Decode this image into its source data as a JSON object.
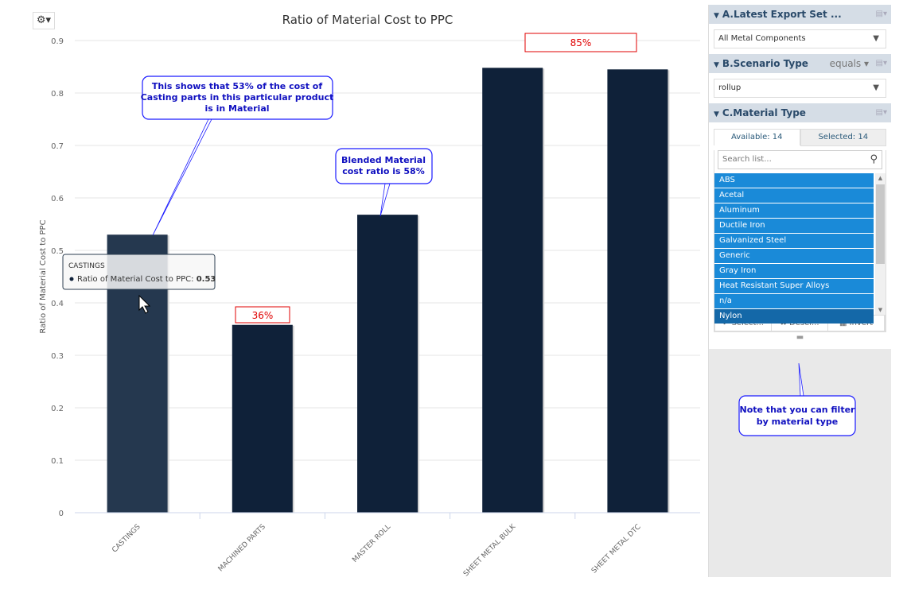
{
  "toolbar": {
    "settings_icon": "gear-icon"
  },
  "chart_data": {
    "type": "bar",
    "title": "Ratio of Material Cost to PPC",
    "ylabel": "Ratio of Material Cost to PPC",
    "xlabel": "",
    "categories": [
      "CASTINGS",
      "MACHINED PARTS",
      "MASTER ROLL",
      "SHEET METAL BULK",
      "SHEET METAL DTC"
    ],
    "values": [
      0.53,
      0.358,
      0.568,
      0.848,
      0.845
    ],
    "ylim": [
      0,
      0.9
    ],
    "yticks": [
      "0",
      "0.1",
      "0.2",
      "0.3",
      "0.4",
      "0.5",
      "0.6",
      "0.7",
      "0.8",
      "0.9"
    ],
    "grid": true,
    "bar_color": "#0f2139",
    "hover_bar_color": "#25384f",
    "tooltip": {
      "category": "CASTINGS",
      "series": "Ratio of Material Cost to PPC",
      "value": "0.53"
    }
  },
  "annotations": {
    "castings_note": [
      "This shows that 53% of the cost of",
      "Casting parts in this particular product",
      "is in Material"
    ],
    "blended_note": [
      "Blended Material",
      "cost ratio is 58%"
    ],
    "filter_note": [
      "Note that you can filter",
      "by material type"
    ],
    "label_machined": "36%",
    "label_bulk": "85%",
    "accent_color": "#1010ff",
    "label_color": "#e00000"
  },
  "filters": {
    "a": {
      "title": "A.Latest Export Set ...",
      "value": "All Metal Components"
    },
    "b": {
      "title": "B.Scenario Type",
      "operator": "equals",
      "value": "rollup"
    },
    "c": {
      "title": "C.Material Type",
      "tab_available": "Available: 14",
      "tab_selected": "Selected: 14",
      "search_placeholder": "Search list...",
      "items": [
        "ABS",
        "Acetal",
        "Aluminum",
        "Ductile Iron",
        "Galvanized Steel",
        "Generic",
        "Gray Iron",
        "Heat Resistant Super Alloys",
        "n/a",
        "Nylon"
      ],
      "select_label": "✔ Select...",
      "deselect_label": "✖ Desel...",
      "invert_label": "Invert"
    }
  }
}
